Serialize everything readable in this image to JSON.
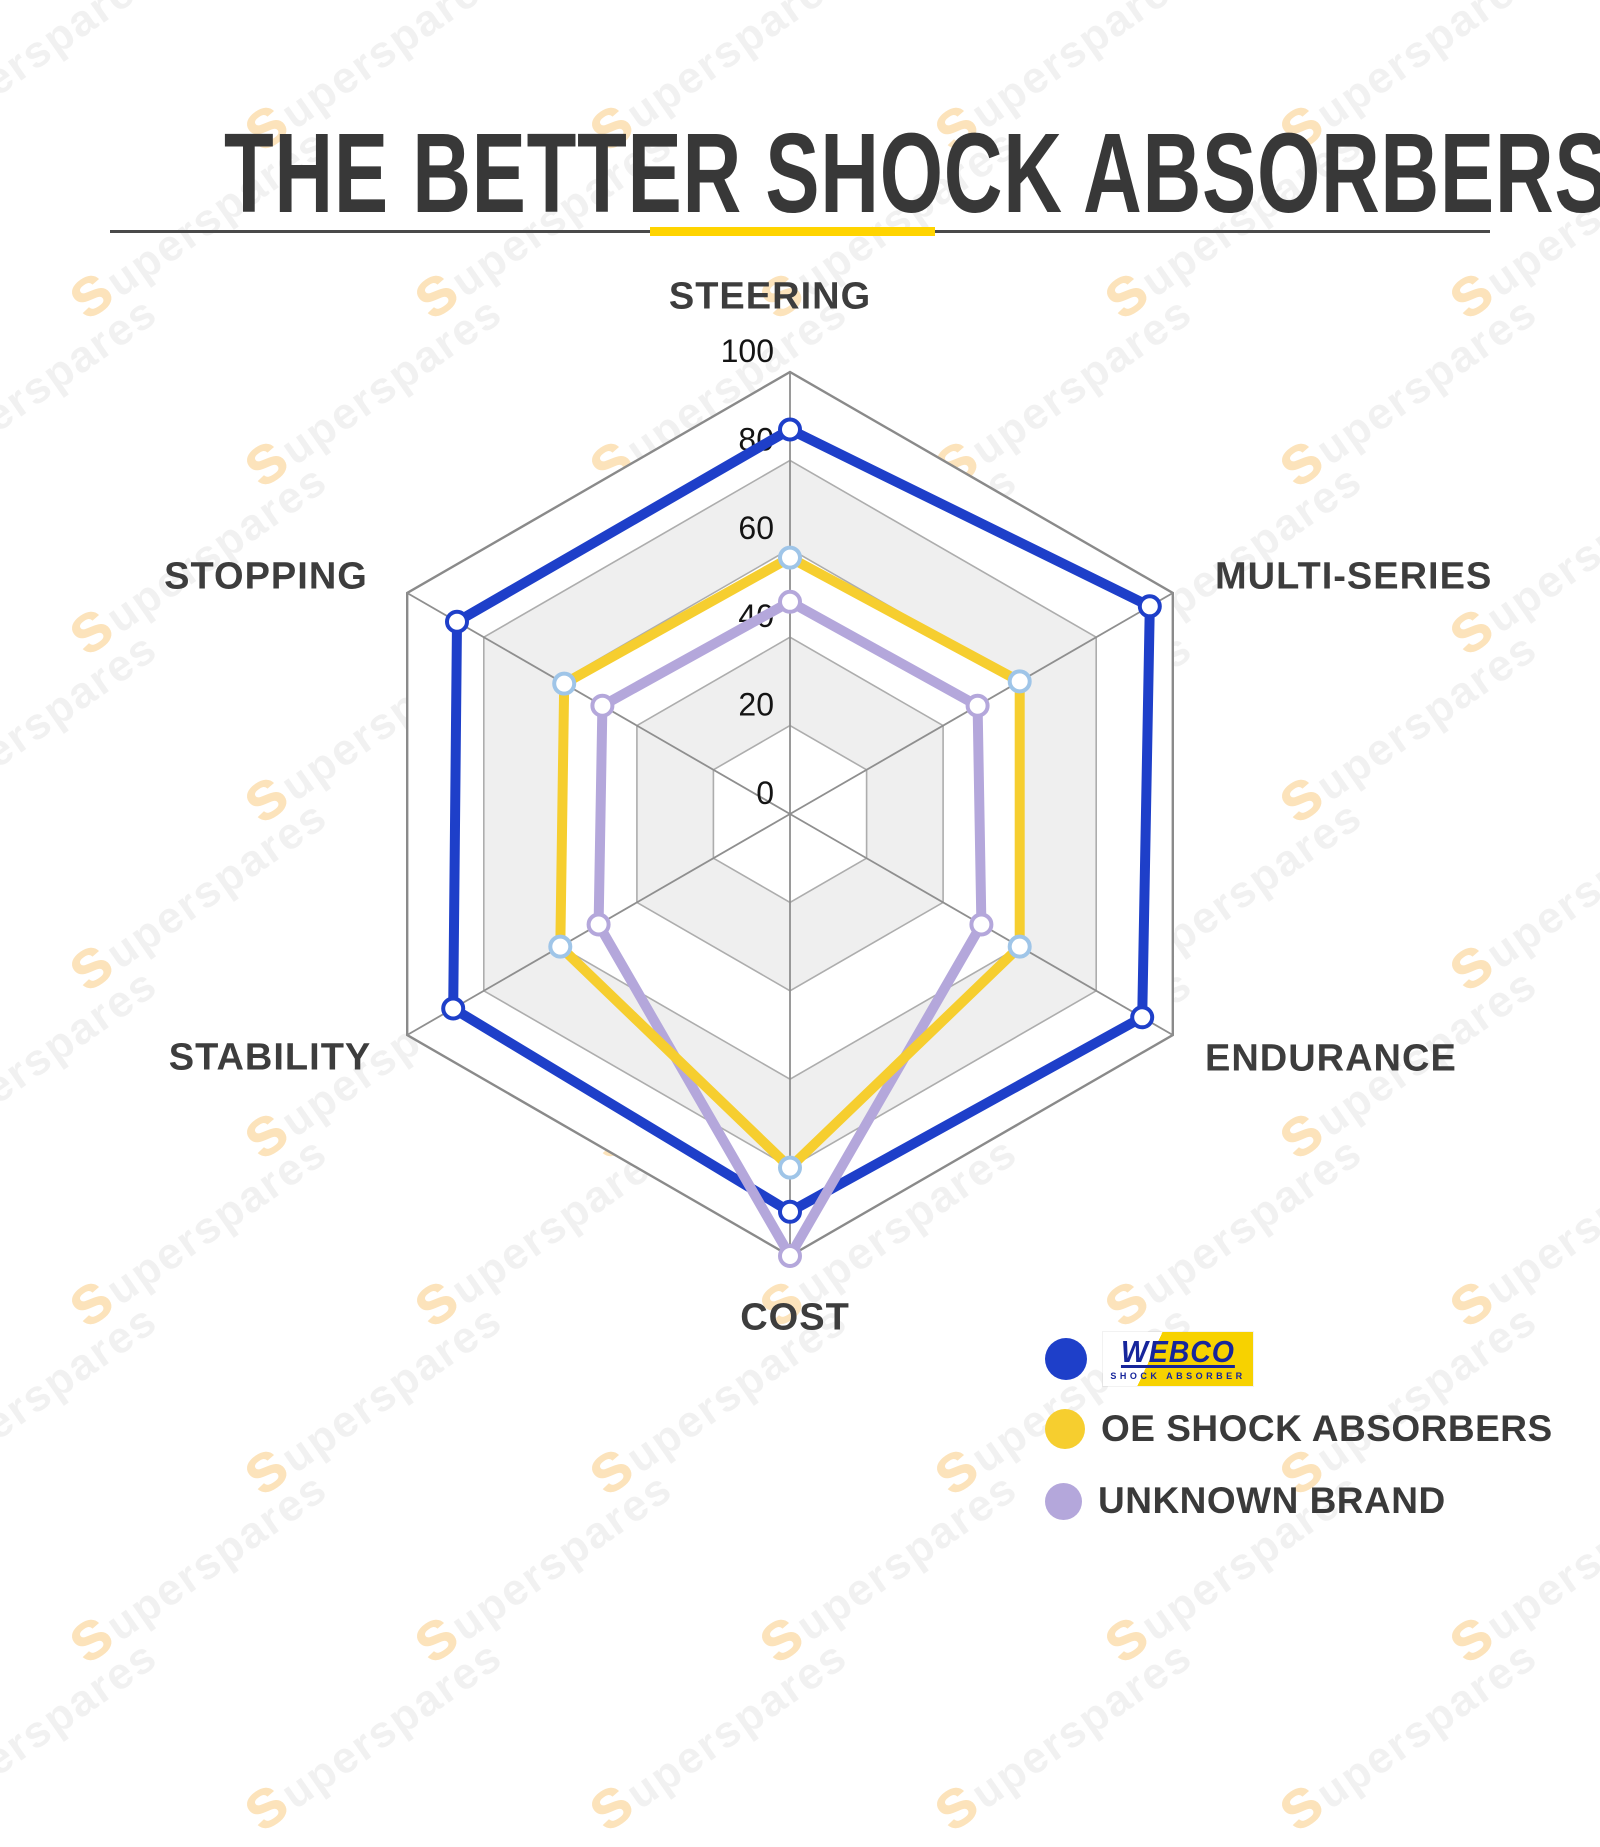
{
  "header": {
    "title": "THE BETTER SHOCK ABSORBERS",
    "accent_color": "#FFD400"
  },
  "watermark": {
    "text": "superspares"
  },
  "chart_data": {
    "type": "radar",
    "title": "THE BETTER SHOCK ABSORBERS",
    "categories": [
      "STEERING",
      "MULTI-SERIES",
      "ENDURANCE",
      "COST",
      "STABILITY",
      "STOPPING"
    ],
    "axis_range": [
      0,
      100
    ],
    "ticks": [
      0,
      20,
      40,
      60,
      80,
      100
    ],
    "grid": {
      "shape": "hexagon",
      "band_colors": [
        "#FFFFFF",
        "#EFEFEF"
      ],
      "line_color": "#ADADAD",
      "outer_line_color": "#8A8A8A",
      "spoke_color": "#8F8F8F",
      "tick_color": "#141414"
    },
    "series": [
      {
        "name": "WEBCO",
        "color": "#1E3FC9",
        "marker_color": "#1E3FC9",
        "values": [
          87,
          94,
          92,
          90,
          88,
          87
        ]
      },
      {
        "name": "OE SHOCK ABSORBERS",
        "color": "#F6CE2F",
        "marker_color": "#9FC5E8",
        "values": [
          58,
          60,
          60,
          80,
          60,
          59
        ]
      },
      {
        "name": "UNKNOWN BRAND",
        "color": "#B4A7DB",
        "marker_color": "#B4A7DB",
        "values": [
          48,
          49,
          50,
          100,
          50,
          49
        ]
      }
    ],
    "legend_position": "bottom-right"
  },
  "legend": {
    "items": [
      {
        "label": "WEBCO SHOCK ABSORBER",
        "dot_color": "#1E3FC9",
        "logo_line1": "WEBCO",
        "logo_line2": "SHOCK ABSORBER"
      },
      {
        "label": "OE SHOCK ABSORBERS",
        "dot_color": "#F6CE2F"
      },
      {
        "label": "UNKNOWN BRAND",
        "dot_color": "#B4A7DB"
      }
    ]
  }
}
